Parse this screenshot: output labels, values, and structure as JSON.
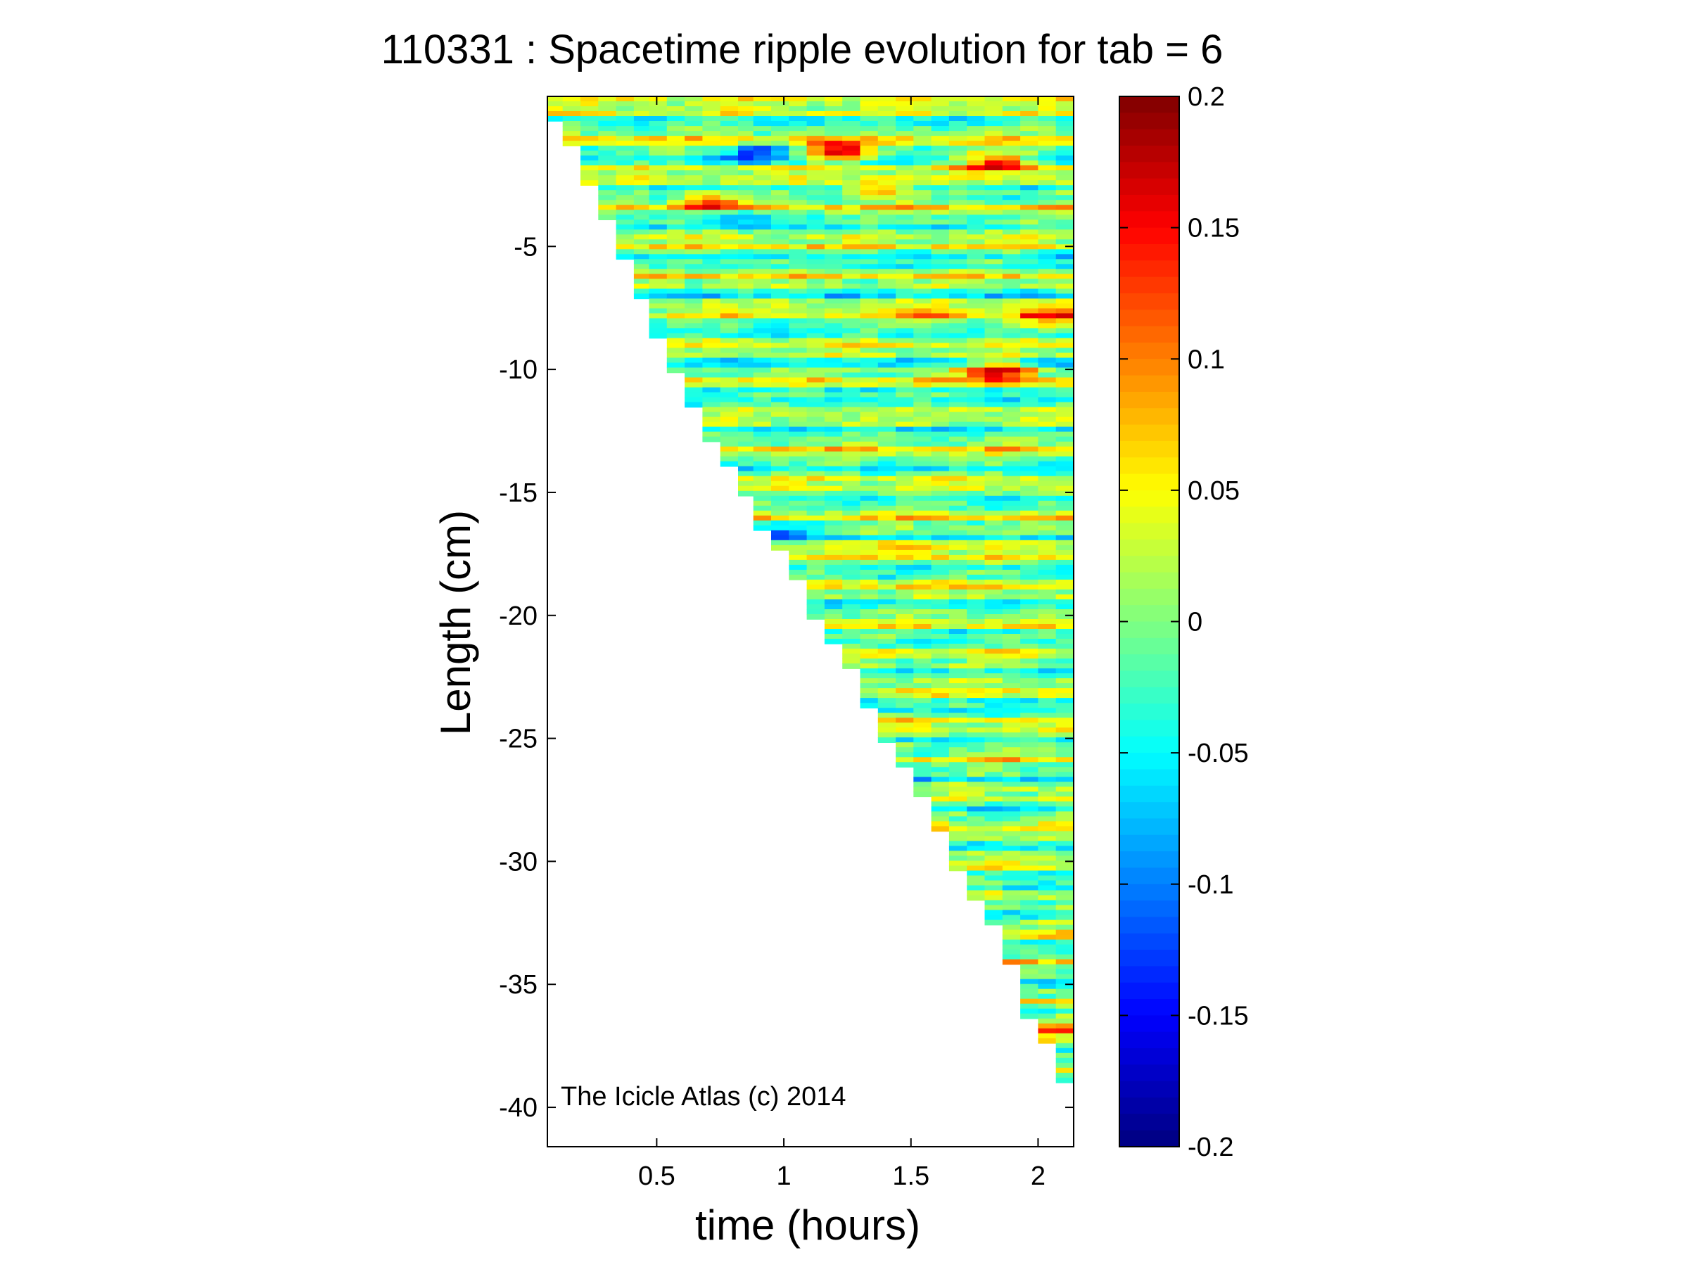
{
  "chart_data": {
    "type": "heatmap",
    "title": "110331 : Spacetime ripple evolution for tab = 6",
    "xlabel": "time (hours)",
    "ylabel": "Length (cm)",
    "xlim": [
      0.07,
      2.14
    ],
    "ylim": [
      -41.6,
      1.1
    ],
    "xticks": [
      {
        "value": 0.5,
        "label": "0.5"
      },
      {
        "value": 1,
        "label": "1"
      },
      {
        "value": 1.5,
        "label": "1.5"
      },
      {
        "value": 2,
        "label": "2"
      }
    ],
    "yticks": [
      {
        "value": -5,
        "label": "-5"
      },
      {
        "value": -10,
        "label": "-10"
      },
      {
        "value": -15,
        "label": "-15"
      },
      {
        "value": -20,
        "label": "-20"
      },
      {
        "value": -25,
        "label": "-25"
      },
      {
        "value": -30,
        "label": "-30"
      },
      {
        "value": -35,
        "label": "-35"
      },
      {
        "value": -40,
        "label": "-40"
      }
    ],
    "colorbar": {
      "colormap": "jet",
      "clim": [
        -0.2,
        0.2
      ],
      "ticks": [
        {
          "value": 0.2,
          "label": "0.2"
        },
        {
          "value": 0.15,
          "label": "0.15"
        },
        {
          "value": 0.1,
          "label": "0.1"
        },
        {
          "value": 0.05,
          "label": "0.05"
        },
        {
          "value": 0,
          "label": "0"
        },
        {
          "value": -0.05,
          "label": "-0.05"
        },
        {
          "value": -0.1,
          "label": "-0.1"
        },
        {
          "value": -0.15,
          "label": "-0.15"
        },
        {
          "value": -0.2,
          "label": "-0.2"
        }
      ]
    },
    "boundary": [
      {
        "t": 0.07,
        "length": 0.0
      },
      {
        "t": 0.13,
        "length": -1.0
      },
      {
        "t": 0.2,
        "length": -2.6
      },
      {
        "t": 0.27,
        "length": -3.9
      },
      {
        "t": 0.34,
        "length": -5.6
      },
      {
        "t": 0.41,
        "length": -7.2
      },
      {
        "t": 0.47,
        "length": -8.7
      },
      {
        "t": 0.54,
        "length": -10.2
      },
      {
        "t": 0.61,
        "length": -11.5
      },
      {
        "t": 0.68,
        "length": -12.9
      },
      {
        "t": 0.75,
        "length": -14.0
      },
      {
        "t": 0.82,
        "length": -15.2
      },
      {
        "t": 0.88,
        "length": -16.5
      },
      {
        "t": 0.95,
        "length": -17.4
      },
      {
        "t": 1.02,
        "length": -18.6
      },
      {
        "t": 1.09,
        "length": -20.2
      },
      {
        "t": 1.16,
        "length": -21.1
      },
      {
        "t": 1.23,
        "length": -22.2
      },
      {
        "t": 1.3,
        "length": -23.8
      },
      {
        "t": 1.37,
        "length": -25.2
      },
      {
        "t": 1.44,
        "length": -26.1
      },
      {
        "t": 1.51,
        "length": -27.3
      },
      {
        "t": 1.58,
        "length": -28.7
      },
      {
        "t": 1.65,
        "length": -30.3
      },
      {
        "t": 1.72,
        "length": -31.5
      },
      {
        "t": 1.79,
        "length": -32.5
      },
      {
        "t": 1.86,
        "length": -34.1
      },
      {
        "t": 1.93,
        "length": -36.4
      },
      {
        "t": 2.0,
        "length": -37.4
      },
      {
        "t": 2.07,
        "length": -38.9
      },
      {
        "t": 2.14,
        "length": -40.3
      }
    ],
    "highlights": [
      {
        "t": 1.22,
        "length": -1.15,
        "value": 0.19
      },
      {
        "t": 1.84,
        "length": -1.6,
        "value": 0.18
      },
      {
        "t": 0.7,
        "length": -3.2,
        "value": 0.13
      },
      {
        "t": 1.35,
        "length": -2.7,
        "value": 0.12
      },
      {
        "t": 1.85,
        "length": -10.1,
        "value": 0.19
      },
      {
        "t": 0.9,
        "length": -1.2,
        "value": -0.1
      },
      {
        "t": 0.8,
        "length": -3.8,
        "value": -0.09
      },
      {
        "t": 2.05,
        "length": -7.9,
        "value": 0.11
      },
      {
        "t": 1.6,
        "length": -7.8,
        "value": 0.09
      },
      {
        "t": 2.02,
        "length": -36.8,
        "value": 0.1
      },
      {
        "t": 1.4,
        "length": -27.0,
        "value": -0.09
      },
      {
        "t": 1.0,
        "length": -16.6,
        "value": -0.08
      },
      {
        "t": 1.5,
        "length": -17.3,
        "value": 0.07
      }
    ]
  },
  "annotations": {
    "copyright": "The Icicle Atlas (c) 2014"
  }
}
